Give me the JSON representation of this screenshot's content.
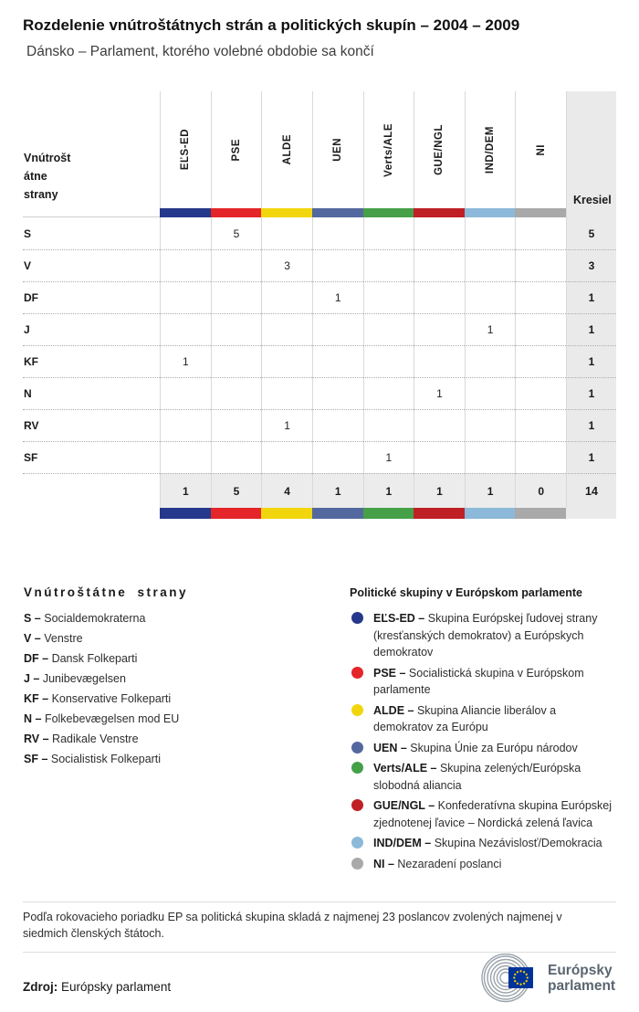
{
  "header": {
    "title": "Rozdelenie vnútroštátnych strán a politických skupín – 2004 – 2009",
    "subtitle": "Dánsko – Parlament, ktorého volebné obdobie sa končí"
  },
  "chart_data": {
    "type": "table",
    "corner_label_lines": [
      "Vnútrošt",
      "átne",
      "strany"
    ],
    "corner_label": "Vnútroštátne strany",
    "seats_column_label": "Kresiel",
    "groups": [
      {
        "label": "EĽS-ED",
        "color": "#26388b"
      },
      {
        "label": "PSE",
        "color": "#e42529"
      },
      {
        "label": "ALDE",
        "color": "#f2d60d"
      },
      {
        "label": "UEN",
        "color": "#53689e"
      },
      {
        "label": "Verts/ALE",
        "color": "#45a048"
      },
      {
        "label": "GUE/NGL",
        "color": "#bf2025"
      },
      {
        "label": "IND/DEM",
        "color": "#8cb9d9"
      },
      {
        "label": "NI",
        "color": "#a9a9a9"
      }
    ],
    "rows": [
      {
        "party": "S",
        "values": [
          null,
          5,
          null,
          null,
          null,
          null,
          null,
          null
        ],
        "total": 5
      },
      {
        "party": "V",
        "values": [
          null,
          null,
          3,
          null,
          null,
          null,
          null,
          null
        ],
        "total": 3
      },
      {
        "party": "DF",
        "values": [
          null,
          null,
          null,
          1,
          null,
          null,
          null,
          null
        ],
        "total": 1
      },
      {
        "party": "J",
        "values": [
          null,
          null,
          null,
          null,
          null,
          null,
          1,
          null
        ],
        "total": 1
      },
      {
        "party": "KF",
        "values": [
          1,
          null,
          null,
          null,
          null,
          null,
          null,
          null
        ],
        "total": 1
      },
      {
        "party": "N",
        "values": [
          null,
          null,
          null,
          null,
          null,
          1,
          null,
          null
        ],
        "total": 1
      },
      {
        "party": "RV",
        "values": [
          null,
          null,
          1,
          null,
          null,
          null,
          null,
          null
        ],
        "total": 1
      },
      {
        "party": "SF",
        "values": [
          null,
          null,
          null,
          null,
          1,
          null,
          null,
          null
        ],
        "total": 1
      }
    ],
    "totals": {
      "values": [
        1,
        5,
        4,
        1,
        1,
        1,
        1,
        0
      ],
      "total": 14
    }
  },
  "party_legend": {
    "title": "Vnútroštátne strany",
    "items": [
      {
        "abbr": "S",
        "name": "Socialdemokraterna"
      },
      {
        "abbr": "V",
        "name": "Venstre"
      },
      {
        "abbr": "DF",
        "name": "Dansk Folkeparti"
      },
      {
        "abbr": "J",
        "name": "Junibevægelsen"
      },
      {
        "abbr": "KF",
        "name": "Konservative Folkeparti"
      },
      {
        "abbr": "N",
        "name": "Folkebevægelsen mod EU"
      },
      {
        "abbr": "RV",
        "name": "Radikale Venstre"
      },
      {
        "abbr": "SF",
        "name": "Socialistisk Folkeparti"
      }
    ]
  },
  "group_legend": {
    "title": "Politické skupiny v Európskom parlamente",
    "items": [
      {
        "abbr": "EĽS-ED",
        "color": "#26388b",
        "desc": "Skupina Európskej ľudovej strany (kresťanských demokratov) a Európskych demokratov"
      },
      {
        "abbr": "PSE",
        "color": "#e42529",
        "desc": "Socialistická skupina v Európskom parlamente"
      },
      {
        "abbr": "ALDE",
        "color": "#f2d60d",
        "desc": "Skupina Aliancie liberálov a demokratov za Európu"
      },
      {
        "abbr": "UEN",
        "color": "#53689e",
        "desc": "Skupina Únie za Európu národov"
      },
      {
        "abbr": "Verts/ALE",
        "color": "#45a048",
        "desc": "Skupina zelených/Európska slobodná aliancia"
      },
      {
        "abbr": "GUE/NGL",
        "color": "#bf2025",
        "desc": "Konfederatívna skupina Európskej zjednotenej ľavice – Nordická zelená ľavica"
      },
      {
        "abbr": "IND/DEM",
        "color": "#8cb9d9",
        "desc": "Skupina Nezávislosť/Demokracia"
      },
      {
        "abbr": "NI",
        "color": "#a9a9a9",
        "desc": "Nezaradení poslanci"
      }
    ]
  },
  "footnote": "Podľa rokovacieho poriadku EP sa politická skupina skladá z najmenej 23 poslancov zvolených najmenej v siedmich členských štátoch.",
  "source": {
    "label": "Zdroj:",
    "value": "Európsky parlament"
  },
  "logo": {
    "line1": "Európsky",
    "line2": "parlament"
  }
}
